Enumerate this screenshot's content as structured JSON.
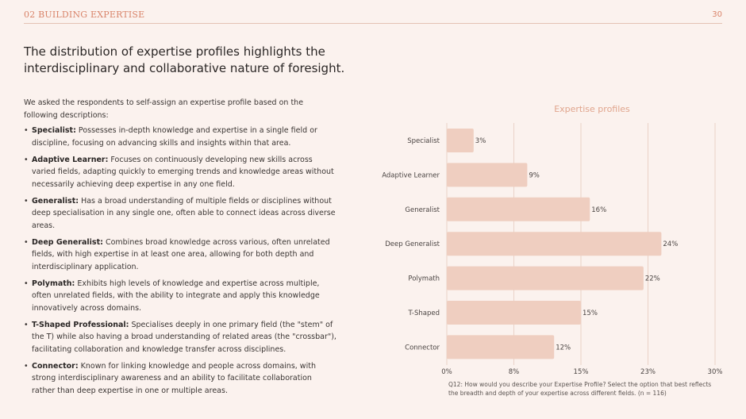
{
  "header": {
    "section": "02 BUILDING EXPERTISE",
    "page_number": "30"
  },
  "title": "The distribution of expertise profiles highlights the interdisciplinary and collaborative nature of foresight.",
  "intro": "We asked the respondents to self-assign an expertise profile based on the following descriptions:",
  "descriptions": [
    {
      "term": "Specialist:",
      "text": " Possesses in-depth knowledge and expertise in a single field or discipline, focusing on advancing skills and insights within that area."
    },
    {
      "term": "Adaptive Learner:",
      "text": " Focuses on continuously developing new skills across varied fields, adapting quickly to emerging trends and knowledge areas without necessarily achieving deep expertise in any one field."
    },
    {
      "term": "Generalist:",
      "text": " Has a broad understanding of multiple fields or disciplines without deep specialisation in any single one, often able to connect ideas across diverse areas."
    },
    {
      "term": "Deep Generalist:",
      "text": " Combines broad knowledge across various, often unrelated fields, with high expertise in at least one area, allowing for both depth and interdisciplinary application."
    },
    {
      "term": "Polymath:",
      "text": " Exhibits high levels of knowledge and expertise across multiple, often unrelated fields, with the ability to integrate and apply this knowledge innovatively across domains."
    },
    {
      "term": "T-Shaped Professional:",
      "text": " Specialises deeply in one primary field (the \"stem\" of the T) while also having a broad understanding of related areas (the \"crossbar\"), facilitating collaboration and knowledge transfer across disciplines."
    },
    {
      "term": "Connector:",
      "text": " Known for linking knowledge and people across domains, with strong interdisciplinary awareness and an ability to facilitate collaboration rather than deep expertise in one or multiple areas."
    }
  ],
  "chart_data": {
    "type": "bar",
    "orientation": "horizontal",
    "title": "Expertise profiles",
    "categories": [
      "Specialist",
      "Adaptive Learner",
      "Generalist",
      "Deep Generalist",
      "Polymath",
      "T-Shaped",
      "Connector"
    ],
    "values": [
      3,
      9,
      16,
      24,
      22,
      15,
      12
    ],
    "value_labels": [
      "3%",
      "9%",
      "16%",
      "24%",
      "22%",
      "15%",
      "12%"
    ],
    "xlim": [
      0,
      30
    ],
    "x_ticks": [
      0,
      7.5,
      15,
      22.5,
      30
    ],
    "x_tick_labels": [
      "0%",
      "8%",
      "15%",
      "23%",
      "30%"
    ],
    "grid": true,
    "colors": {
      "bar": "#efcec0",
      "title": "#e0a58d",
      "grid": "#e6c9bd",
      "text": "#4a4442"
    }
  },
  "footnote": "Q12: How would you describe your Expertise Profile? Select the option that best reflects the breadth and depth of your expertise across different fields. (n = 116)"
}
